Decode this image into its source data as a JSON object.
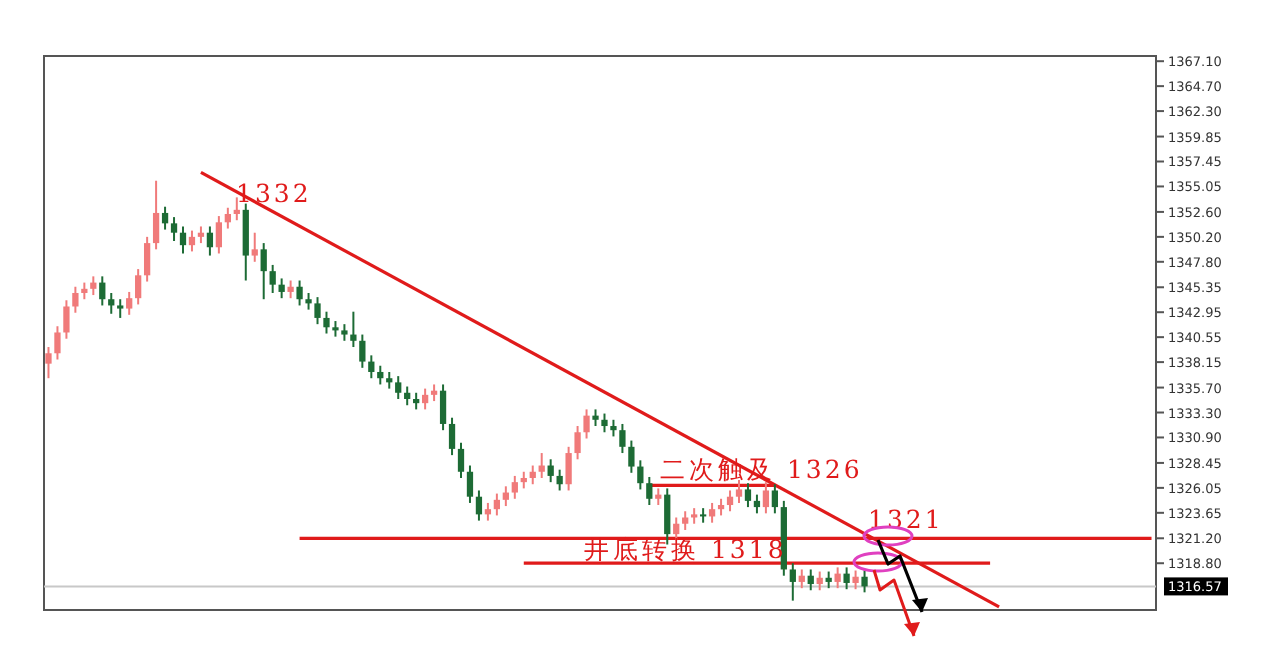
{
  "chart_data": {
    "type": "candlestick",
    "categories": [
      null,
      null,
      null,
      null,
      null,
      null,
      null,
      null,
      null,
      null,
      null,
      null,
      null,
      null,
      null,
      null,
      null,
      null,
      null,
      null,
      null,
      null,
      null,
      null,
      null,
      null,
      null,
      null,
      null,
      null,
      null,
      null,
      null,
      null,
      null,
      null,
      null,
      null,
      null,
      null,
      null,
      null,
      null,
      null,
      null,
      null,
      null,
      null,
      null,
      null,
      null,
      null,
      null,
      null,
      null,
      null,
      null,
      null,
      null,
      null,
      null,
      null,
      null,
      null,
      null,
      null,
      null,
      null,
      null,
      null,
      null,
      null,
      null,
      null,
      null,
      null,
      null,
      null,
      null,
      null,
      null,
      null,
      null,
      null,
      null,
      null,
      null,
      null,
      null,
      null,
      null,
      null,
      null,
      null,
      null,
      null,
      null,
      null,
      null,
      null,
      null,
      null,
      null,
      null,
      null,
      null,
      null,
      null,
      null,
      null,
      null,
      null,
      null,
      null,
      null,
      null,
      null,
      null,
      null,
      null,
      null,
      null,
      null,
      null
    ],
    "ohlc": [
      [
        1338.0,
        1339.6,
        1336.6,
        1339.0
      ],
      [
        1339.0,
        1341.6,
        1338.4,
        1341.0
      ],
      [
        1341.0,
        1344.1,
        1340.4,
        1343.5
      ],
      [
        1343.5,
        1345.4,
        1342.9,
        1344.8
      ],
      [
        1344.8,
        1345.8,
        1344.2,
        1345.2
      ],
      [
        1345.2,
        1346.4,
        1344.6,
        1345.8
      ],
      [
        1345.8,
        1346.4,
        1343.6,
        1344.2
      ],
      [
        1344.2,
        1344.8,
        1342.8,
        1343.6
      ],
      [
        1343.6,
        1344.2,
        1342.4,
        1343.3
      ],
      [
        1343.3,
        1344.9,
        1342.7,
        1344.3
      ],
      [
        1344.3,
        1347.1,
        1343.7,
        1346.5
      ],
      [
        1346.5,
        1350.2,
        1345.9,
        1349.6
      ],
      [
        1349.6,
        1355.6,
        1349.0,
        1352.5
      ],
      [
        1352.5,
        1353.1,
        1350.9,
        1351.5
      ],
      [
        1351.5,
        1352.1,
        1349.8,
        1350.6
      ],
      [
        1350.6,
        1351.2,
        1348.6,
        1349.4
      ],
      [
        1349.4,
        1350.8,
        1348.8,
        1350.2
      ],
      [
        1350.2,
        1351.2,
        1349.6,
        1350.6
      ],
      [
        1350.6,
        1351.2,
        1348.4,
        1349.2
      ],
      [
        1349.2,
        1352.2,
        1348.6,
        1351.6
      ],
      [
        1351.6,
        1353.0,
        1351.0,
        1352.4
      ],
      [
        1352.4,
        1354.0,
        1351.8,
        1352.8
      ],
      [
        1352.8,
        1353.4,
        1346.0,
        1348.4
      ],
      [
        1348.4,
        1350.6,
        1347.8,
        1349.0
      ],
      [
        1349.0,
        1349.6,
        1344.2,
        1346.9
      ],
      [
        1346.9,
        1347.5,
        1344.8,
        1345.6
      ],
      [
        1345.6,
        1346.2,
        1344.3,
        1344.9
      ],
      [
        1344.9,
        1346.0,
        1344.3,
        1345.4
      ],
      [
        1345.4,
        1346.0,
        1343.6,
        1344.2
      ],
      [
        1344.2,
        1344.8,
        1343.2,
        1343.8
      ],
      [
        1343.8,
        1344.4,
        1341.8,
        1342.4
      ],
      [
        1342.4,
        1343.0,
        1340.9,
        1341.5
      ],
      [
        1341.5,
        1342.1,
        1340.6,
        1341.2
      ],
      [
        1341.2,
        1341.8,
        1340.2,
        1340.8
      ],
      [
        1340.8,
        1343.0,
        1339.6,
        1340.2
      ],
      [
        1340.2,
        1340.8,
        1337.6,
        1338.2
      ],
      [
        1338.2,
        1338.8,
        1336.6,
        1337.2
      ],
      [
        1337.2,
        1337.8,
        1336.0,
        1336.6
      ],
      [
        1336.6,
        1337.2,
        1335.6,
        1336.2
      ],
      [
        1336.2,
        1336.8,
        1334.6,
        1335.2
      ],
      [
        1335.2,
        1335.8,
        1334.0,
        1334.6
      ],
      [
        1334.6,
        1335.2,
        1333.6,
        1334.2
      ],
      [
        1334.2,
        1335.6,
        1333.6,
        1335.0
      ],
      [
        1335.0,
        1336.0,
        1334.4,
        1335.4
      ],
      [
        1335.4,
        1336.0,
        1331.6,
        1332.2
      ],
      [
        1332.2,
        1332.8,
        1329.2,
        1329.8
      ],
      [
        1329.8,
        1330.4,
        1327.0,
        1327.6
      ],
      [
        1327.6,
        1328.2,
        1324.6,
        1325.2
      ],
      [
        1325.2,
        1325.8,
        1322.9,
        1323.5
      ],
      [
        1323.5,
        1324.6,
        1322.9,
        1324.0
      ],
      [
        1324.0,
        1325.5,
        1323.4,
        1324.9
      ],
      [
        1324.9,
        1326.2,
        1324.3,
        1325.6
      ],
      [
        1325.6,
        1327.2,
        1325.0,
        1326.6
      ],
      [
        1326.6,
        1327.6,
        1326.0,
        1327.0
      ],
      [
        1327.0,
        1328.2,
        1326.4,
        1327.6
      ],
      [
        1327.6,
        1329.4,
        1327.0,
        1328.2
      ],
      [
        1328.2,
        1328.8,
        1326.6,
        1327.2
      ],
      [
        1327.2,
        1327.8,
        1325.8,
        1326.4
      ],
      [
        1326.4,
        1330.0,
        1325.8,
        1329.4
      ],
      [
        1329.4,
        1332.0,
        1328.8,
        1331.4
      ],
      [
        1331.4,
        1333.6,
        1330.8,
        1333.0
      ],
      [
        1333.0,
        1333.6,
        1332.0,
        1332.6
      ],
      [
        1332.6,
        1333.2,
        1331.4,
        1332.0
      ],
      [
        1332.0,
        1332.6,
        1331.0,
        1331.6
      ],
      [
        1331.6,
        1332.2,
        1329.4,
        1330.0
      ],
      [
        1330.0,
        1330.6,
        1327.5,
        1328.1
      ],
      [
        1328.1,
        1328.7,
        1325.9,
        1326.5
      ],
      [
        1326.5,
        1327.1,
        1324.4,
        1325.0
      ],
      [
        1325.0,
        1326.0,
        1324.4,
        1325.4
      ],
      [
        1325.4,
        1326.0,
        1320.6,
        1321.6
      ],
      [
        1321.6,
        1323.2,
        1321.0,
        1322.6
      ],
      [
        1322.6,
        1323.8,
        1322.0,
        1323.2
      ],
      [
        1323.2,
        1324.1,
        1322.6,
        1323.5
      ],
      [
        1323.5,
        1324.1,
        1322.7,
        1323.3
      ],
      [
        1323.3,
        1324.6,
        1322.7,
        1324.0
      ],
      [
        1324.0,
        1325.0,
        1323.4,
        1324.4
      ],
      [
        1324.4,
        1325.8,
        1323.8,
        1325.2
      ],
      [
        1325.2,
        1326.8,
        1324.6,
        1325.9
      ],
      [
        1325.9,
        1326.5,
        1324.2,
        1324.8
      ],
      [
        1324.8,
        1325.4,
        1323.6,
        1324.2
      ],
      [
        1324.2,
        1326.6,
        1323.6,
        1325.8
      ],
      [
        1325.8,
        1326.4,
        1323.6,
        1324.2
      ],
      [
        1324.2,
        1324.8,
        1317.6,
        1318.2
      ],
      [
        1318.2,
        1318.8,
        1315.2,
        1317.0
      ],
      [
        1317.0,
        1318.2,
        1316.4,
        1317.6
      ],
      [
        1317.6,
        1318.2,
        1316.2,
        1316.8
      ],
      [
        1316.8,
        1318.0,
        1316.2,
        1317.4
      ],
      [
        1317.4,
        1318.0,
        1316.4,
        1317.0
      ],
      [
        1317.0,
        1318.4,
        1316.4,
        1317.8
      ],
      [
        1317.8,
        1318.4,
        1316.3,
        1316.9
      ],
      [
        1316.9,
        1318.1,
        1316.3,
        1317.5
      ],
      [
        1317.5,
        1318.1,
        1316.0,
        1316.57
      ],
      null,
      null,
      null,
      null,
      null,
      null,
      null,
      null,
      null,
      null,
      null,
      null,
      null,
      null,
      null,
      null,
      null,
      null,
      null,
      null,
      null,
      null,
      null,
      null,
      null,
      null,
      null,
      null,
      null,
      null,
      null,
      null
    ],
    "series": [
      {
        "type": "line",
        "color": "#e01b1b",
        "values": [
          null,
          null,
          null,
          null,
          null,
          null,
          null,
          null,
          null,
          null,
          null,
          null,
          null,
          null,
          null,
          null,
          null,
          1356.4,
          null,
          null,
          null,
          null,
          null,
          null,
          null,
          null,
          null,
          null,
          null,
          null,
          null,
          null,
          null,
          null,
          null,
          null,
          null,
          null,
          null,
          null,
          null,
          null,
          null,
          null,
          null,
          null,
          null,
          null,
          null,
          null,
          null,
          null,
          null,
          null,
          null,
          null,
          null,
          null,
          null,
          null,
          null,
          null,
          null,
          null,
          null,
          null,
          null,
          null,
          null,
          null,
          null,
          null,
          null,
          null,
          null,
          null,
          null,
          null,
          null,
          null,
          null,
          null,
          null,
          null,
          null,
          null,
          null,
          null,
          null,
          null,
          null,
          null,
          null,
          null,
          null,
          null,
          null,
          null,
          null,
          null,
          null,
          null,
          null,
          null,
          null,
          null,
          1314.6,
          null,
          null,
          null,
          null,
          null,
          null,
          null,
          null,
          null,
          null,
          null,
          null,
          null,
          null,
          null,
          null,
          null
        ]
      },
      {
        "type": "line",
        "color": "#e01b1b",
        "values": [
          null,
          null,
          null,
          null,
          null,
          null,
          null,
          null,
          null,
          null,
          null,
          null,
          null,
          null,
          null,
          null,
          null,
          null,
          null,
          null,
          null,
          null,
          null,
          null,
          null,
          null,
          null,
          null,
          1321.2,
          null,
          null,
          null,
          null,
          null,
          null,
          null,
          null,
          null,
          null,
          null,
          null,
          null,
          null,
          null,
          null,
          null,
          null,
          null,
          null,
          null,
          null,
          null,
          null,
          null,
          null,
          null,
          null,
          null,
          null,
          null,
          null,
          null,
          null,
          null,
          null,
          null,
          null,
          null,
          null,
          null,
          null,
          null,
          null,
          null,
          null,
          null,
          null,
          null,
          null,
          null,
          null,
          null,
          null,
          null,
          null,
          null,
          null,
          null,
          null,
          null,
          null,
          null,
          null,
          null,
          null,
          null,
          null,
          null,
          null,
          null,
          null,
          null,
          null,
          null,
          null,
          null,
          null,
          null,
          null,
          null,
          null,
          null,
          null,
          null,
          null,
          null,
          null,
          null,
          null,
          null,
          null,
          null,
          null,
          1321.2
        ]
      },
      {
        "type": "line",
        "color": "#e01b1b",
        "values": [
          null,
          null,
          null,
          null,
          null,
          null,
          null,
          null,
          null,
          null,
          null,
          null,
          null,
          null,
          null,
          null,
          null,
          null,
          null,
          null,
          null,
          null,
          null,
          null,
          null,
          null,
          null,
          null,
          null,
          null,
          null,
          null,
          null,
          null,
          null,
          null,
          null,
          null,
          null,
          null,
          null,
          null,
          null,
          null,
          null,
          null,
          null,
          null,
          null,
          null,
          null,
          null,
          null,
          1318.8,
          null,
          null,
          null,
          null,
          null,
          null,
          null,
          null,
          null,
          null,
          null,
          null,
          null,
          null,
          null,
          null,
          null,
          null,
          null,
          null,
          null,
          null,
          null,
          null,
          null,
          null,
          null,
          null,
          null,
          null,
          null,
          null,
          null,
          null,
          null,
          null,
          null,
          null,
          null,
          null,
          null,
          null,
          null,
          null,
          null,
          null,
          null,
          null,
          null,
          null,
          null,
          1318.8,
          null,
          null,
          null,
          null,
          null,
          null,
          null,
          null,
          null,
          null,
          null,
          null,
          null,
          null,
          null,
          null,
          null,
          null
        ]
      },
      {
        "type": "line",
        "color": "#e01b1b",
        "values": [
          null,
          null,
          null,
          null,
          null,
          null,
          null,
          null,
          null,
          null,
          null,
          null,
          null,
          null,
          null,
          null,
          null,
          null,
          null,
          null,
          null,
          null,
          null,
          null,
          null,
          null,
          null,
          null,
          null,
          null,
          null,
          null,
          null,
          null,
          null,
          null,
          null,
          null,
          null,
          null,
          null,
          null,
          null,
          null,
          null,
          null,
          null,
          null,
          null,
          null,
          null,
          null,
          null,
          null,
          null,
          null,
          null,
          null,
          null,
          null,
          null,
          null,
          null,
          null,
          null,
          null,
          null,
          1326.3,
          null,
          null,
          null,
          null,
          null,
          null,
          null,
          null,
          null,
          null,
          null,
          null,
          null,
          1326.3,
          null,
          null,
          null,
          null,
          null,
          null,
          null,
          null,
          null,
          null,
          null,
          null,
          null,
          null,
          null,
          null,
          null,
          null,
          null,
          null,
          null,
          null,
          null,
          null,
          null,
          null,
          null,
          null,
          null,
          null,
          null,
          null,
          null,
          null,
          null,
          null,
          null,
          null,
          null,
          null,
          null,
          null
        ]
      }
    ],
    "ylim": [
      1314.3,
      1367.6
    ],
    "yticks": [
      {
        "value": 1367.1,
        "label": "1367.10"
      },
      {
        "value": 1364.7,
        "label": "1364.70"
      },
      {
        "value": 1362.3,
        "label": "1362.30"
      },
      1359.85,
      1357.45,
      1355.05,
      {
        "value": 1352.6,
        "label": "1352.60"
      },
      {
        "value": 1350.2,
        "label": "1350.20"
      },
      {
        "value": 1347.8,
        "label": "1347.80"
      },
      1345.35,
      1342.95,
      1340.55,
      1338.15,
      {
        "value": 1335.7,
        "label": "1335.70"
      },
      {
        "value": 1333.3,
        "label": "1333.30"
      },
      {
        "value": 1330.9,
        "label": "1330.90"
      },
      1328.45,
      1326.05,
      1323.65,
      {
        "value": 1321.2,
        "label": "1321.20"
      },
      {
        "value": 1318.8,
        "label": "1318.80"
      }
    ],
    "ref_lines": [
      {
        "axis": "y",
        "value": 1316.57,
        "label": "1316.57",
        "color": "#c8c8c8"
      }
    ],
    "annotations": [
      "1332",
      "二次触及 1326",
      "1321",
      "井底转换 1318"
    ],
    "grid": false
  }
}
